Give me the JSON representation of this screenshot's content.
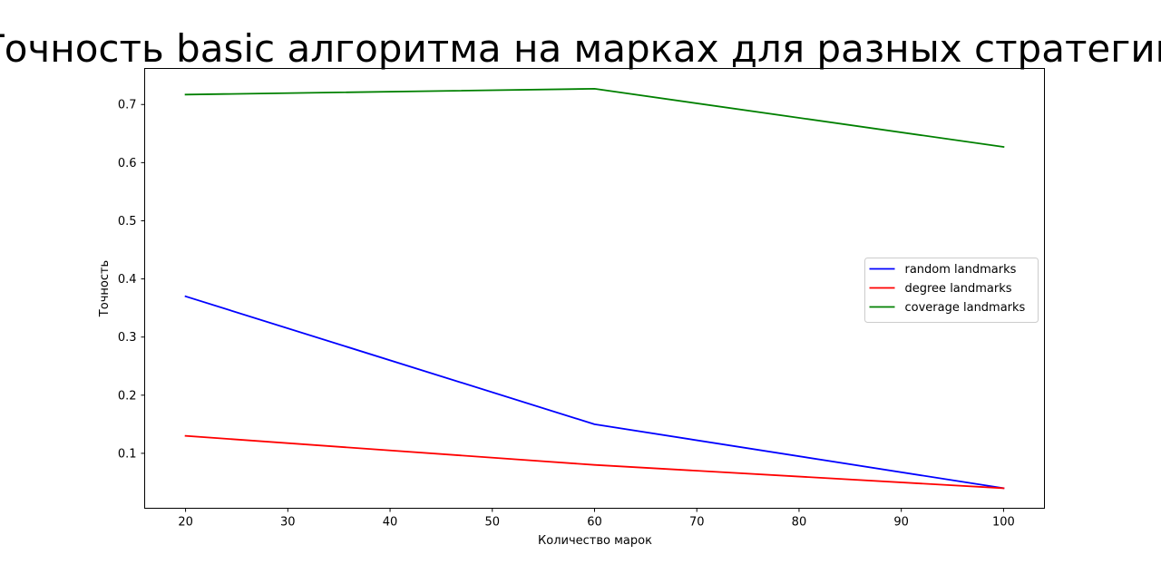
{
  "chart_data": {
    "type": "line",
    "title": "Точность basic алгоритма на марках для разных стратегий",
    "xlabel": "Количество марок",
    "ylabel": "Точность",
    "x": [
      20,
      60,
      100
    ],
    "xlim": [
      16,
      104
    ],
    "ylim": [
      0.0055,
      0.762
    ],
    "xticks": [
      20,
      30,
      40,
      50,
      60,
      70,
      80,
      90,
      100
    ],
    "yticks": [
      0.1,
      0.2,
      0.3,
      0.4,
      0.5,
      0.6,
      0.7
    ],
    "ytick_labels": [
      "0.1",
      "0.2",
      "0.3",
      "0.4",
      "0.5",
      "0.6",
      "0.7"
    ],
    "grid": false,
    "legend_position": "center-right",
    "series": [
      {
        "name": "random landmarks",
        "color": "#0000ff",
        "values": [
          0.37,
          0.15,
          0.04
        ]
      },
      {
        "name": "degree landmarks",
        "color": "#ff0000",
        "values": [
          0.13,
          0.08,
          0.04
        ]
      },
      {
        "name": "coverage landmarks",
        "color": "#008000",
        "values": [
          0.717,
          0.727,
          0.627
        ]
      }
    ]
  }
}
